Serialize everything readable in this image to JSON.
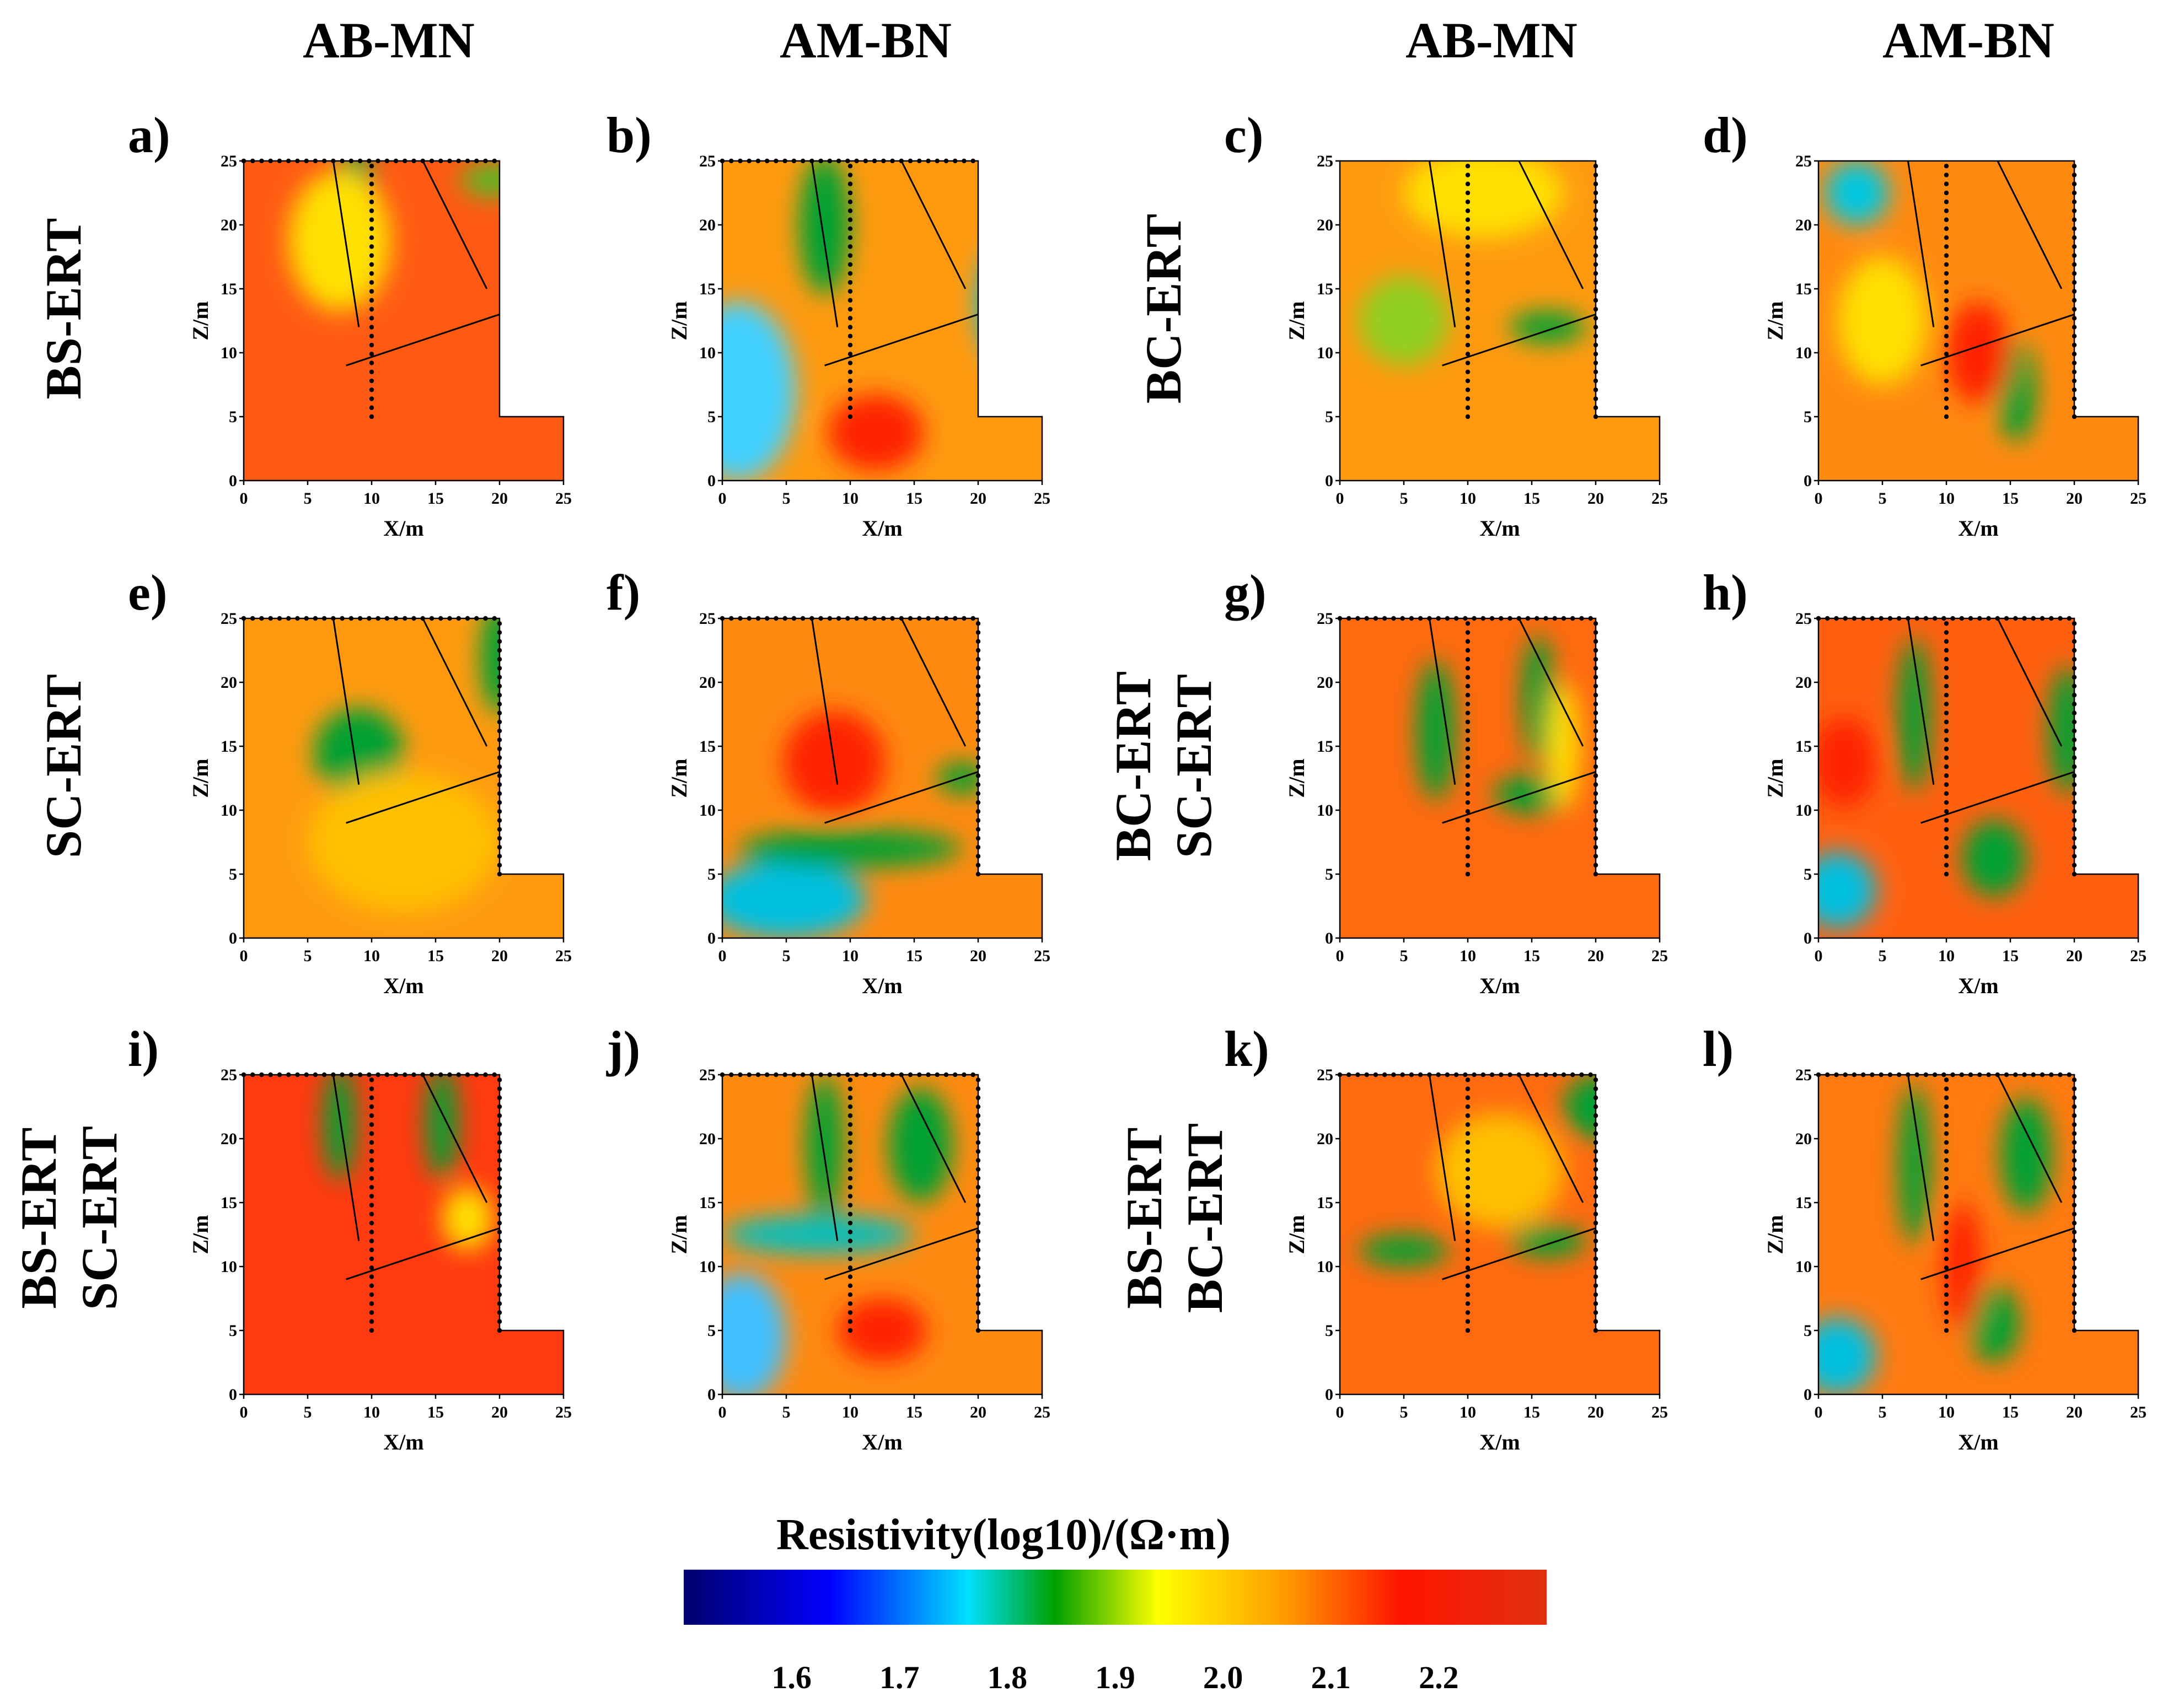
{
  "column_headers": [
    "AB-MN",
    "AM-BN",
    "AB-MN",
    "AM-BN"
  ],
  "row_labels": [
    {
      "left": [
        "BS-ERT"
      ],
      "right": [
        "BC-ERT"
      ]
    },
    {
      "left": [
        "SC-ERT"
      ],
      "right": [
        "BC-ERT",
        "SC-ERT"
      ]
    },
    {
      "left": [
        "BS-ERT",
        "SC-ERT"
      ],
      "right": [
        "BS-ERT",
        "BC-ERT"
      ]
    }
  ],
  "colorbar": {
    "title": "Resistivity(log10)/(Ω·m)",
    "ticks": [
      "1.6",
      "1.7",
      "1.8",
      "1.9",
      "2.0",
      "2.1",
      "2.2"
    ],
    "range": [
      1.5,
      2.3
    ]
  },
  "colors": {
    "colormap": [
      "#00006e",
      "#0000ff",
      "#00e0ff",
      "#00a000",
      "#ffff00",
      "#ff9900",
      "#ff1400",
      "#e03010"
    ]
  },
  "chart_data": [
    {
      "panel": "a)",
      "type": "heatmap",
      "config": "BS-ERT",
      "array": "AB-MN",
      "xlabel": "X/m",
      "ylabel": "Z/m",
      "xticks": [
        "0",
        "5",
        "10",
        "15",
        "20",
        "25"
      ],
      "yticks": [
        "0",
        "5",
        "10",
        "15",
        "20",
        "25"
      ],
      "xlim": [
        0,
        25
      ],
      "ylim": [
        0,
        25
      ]
    },
    {
      "panel": "b)",
      "type": "heatmap",
      "config": "BS-ERT",
      "array": "AM-BN",
      "xlabel": "X/m",
      "ylabel": "Z/m",
      "xticks": [
        "0",
        "5",
        "10",
        "15",
        "20",
        "25"
      ],
      "yticks": [
        "0",
        "5",
        "10",
        "15",
        "20",
        "25"
      ],
      "xlim": [
        0,
        25
      ],
      "ylim": [
        0,
        25
      ]
    },
    {
      "panel": "c)",
      "type": "heatmap",
      "config": "BC-ERT",
      "array": "AB-MN",
      "xlabel": "X/m",
      "ylabel": "Z/m",
      "xticks": [
        "0",
        "5",
        "10",
        "15",
        "20",
        "25"
      ],
      "yticks": [
        "0",
        "5",
        "10",
        "15",
        "20",
        "25"
      ],
      "xlim": [
        0,
        25
      ],
      "ylim": [
        0,
        25
      ]
    },
    {
      "panel": "d)",
      "type": "heatmap",
      "config": "BC-ERT",
      "array": "AM-BN",
      "xlabel": "X/m",
      "ylabel": "Z/m",
      "xticks": [
        "0",
        "5",
        "10",
        "15",
        "20",
        "25"
      ],
      "yticks": [
        "0",
        "5",
        "10",
        "15",
        "20",
        "25"
      ],
      "xlim": [
        0,
        25
      ],
      "ylim": [
        0,
        25
      ]
    },
    {
      "panel": "e)",
      "type": "heatmap",
      "config": "SC-ERT",
      "array": "AB-MN",
      "xlabel": "X/m",
      "ylabel": "Z/m",
      "xticks": [
        "0",
        "5",
        "10",
        "15",
        "20",
        "25"
      ],
      "yticks": [
        "0",
        "5",
        "10",
        "15",
        "20",
        "25"
      ],
      "xlim": [
        0,
        25
      ],
      "ylim": [
        0,
        25
      ]
    },
    {
      "panel": "f)",
      "type": "heatmap",
      "config": "SC-ERT",
      "array": "AM-BN",
      "xlabel": "X/m",
      "ylabel": "Z/m",
      "xticks": [
        "0",
        "5",
        "10",
        "15",
        "20",
        "25"
      ],
      "yticks": [
        "0",
        "5",
        "10",
        "15",
        "20",
        "25"
      ],
      "xlim": [
        0,
        25
      ],
      "ylim": [
        0,
        25
      ]
    },
    {
      "panel": "g)",
      "type": "heatmap",
      "config": "BC-ERT SC-ERT",
      "array": "AB-MN",
      "xlabel": "X/m",
      "ylabel": "Z/m",
      "xticks": [
        "0",
        "5",
        "10",
        "15",
        "20",
        "25"
      ],
      "yticks": [
        "0",
        "5",
        "10",
        "15",
        "20",
        "25"
      ],
      "xlim": [
        0,
        25
      ],
      "ylim": [
        0,
        25
      ]
    },
    {
      "panel": "h)",
      "type": "heatmap",
      "config": "BC-ERT SC-ERT",
      "array": "AM-BN",
      "xlabel": "X/m",
      "ylabel": "Z/m",
      "xticks": [
        "0",
        "5",
        "10",
        "15",
        "20",
        "25"
      ],
      "yticks": [
        "0",
        "5",
        "10",
        "15",
        "20",
        "25"
      ],
      "xlim": [
        0,
        25
      ],
      "ylim": [
        0,
        25
      ]
    },
    {
      "panel": "i)",
      "type": "heatmap",
      "config": "BS-ERT SC-ERT",
      "array": "AB-MN",
      "xlabel": "X/m",
      "ylabel": "Z/m",
      "xticks": [
        "0",
        "5",
        "10",
        "15",
        "20",
        "25"
      ],
      "yticks": [
        "0",
        "5",
        "10",
        "15",
        "20",
        "25"
      ],
      "xlim": [
        0,
        25
      ],
      "ylim": [
        0,
        25
      ]
    },
    {
      "panel": "j)",
      "type": "heatmap",
      "config": "BS-ERT SC-ERT",
      "array": "AM-BN",
      "xlabel": "X/m",
      "ylabel": "Z/m",
      "xticks": [
        "0",
        "5",
        "10",
        "15",
        "20",
        "25"
      ],
      "yticks": [
        "0",
        "5",
        "10",
        "15",
        "20",
        "25"
      ],
      "xlim": [
        0,
        25
      ],
      "ylim": [
        0,
        25
      ]
    },
    {
      "panel": "k)",
      "type": "heatmap",
      "config": "BS-ERT BC-ERT",
      "array": "AB-MN",
      "xlabel": "X/m",
      "ylabel": "Z/m",
      "xticks": [
        "0",
        "5",
        "10",
        "15",
        "20",
        "25"
      ],
      "yticks": [
        "0",
        "5",
        "10",
        "15",
        "20",
        "25"
      ],
      "xlim": [
        0,
        25
      ],
      "ylim": [
        0,
        25
      ]
    },
    {
      "panel": "l)",
      "type": "heatmap",
      "config": "BS-ERT BC-ERT",
      "array": "AM-BN",
      "xlabel": "X/m",
      "ylabel": "Z/m",
      "xticks": [
        "0",
        "5",
        "10",
        "15",
        "20",
        "25"
      ],
      "yticks": [
        "0",
        "5",
        "10",
        "15",
        "20",
        "25"
      ],
      "xlim": [
        0,
        25
      ],
      "ylim": [
        0,
        25
      ]
    }
  ]
}
